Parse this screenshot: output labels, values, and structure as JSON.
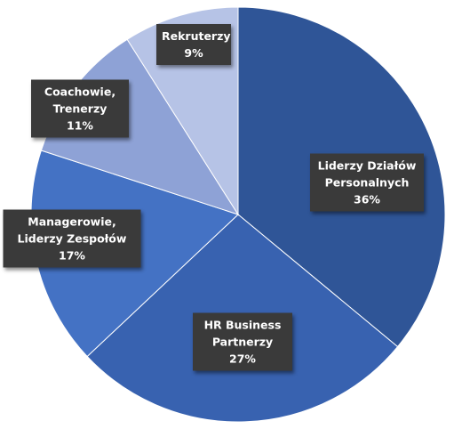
{
  "chart_data": {
    "type": "pie",
    "categories": [
      "Liderzy Działów Personalnych",
      "HR Business Partnerzy",
      "Managerowie, Liderzy Zespołów",
      "Coachowie, Trenerzy",
      "Rekruterzy"
    ],
    "values": [
      36,
      27,
      17,
      11,
      9
    ],
    "value_labels": [
      "36%",
      "27%",
      "17%",
      "11%",
      "9%"
    ],
    "colors": [
      "#2f5597",
      "#3862b0",
      "#4472c4",
      "#8ea2d6",
      "#b6c3e6"
    ]
  }
}
